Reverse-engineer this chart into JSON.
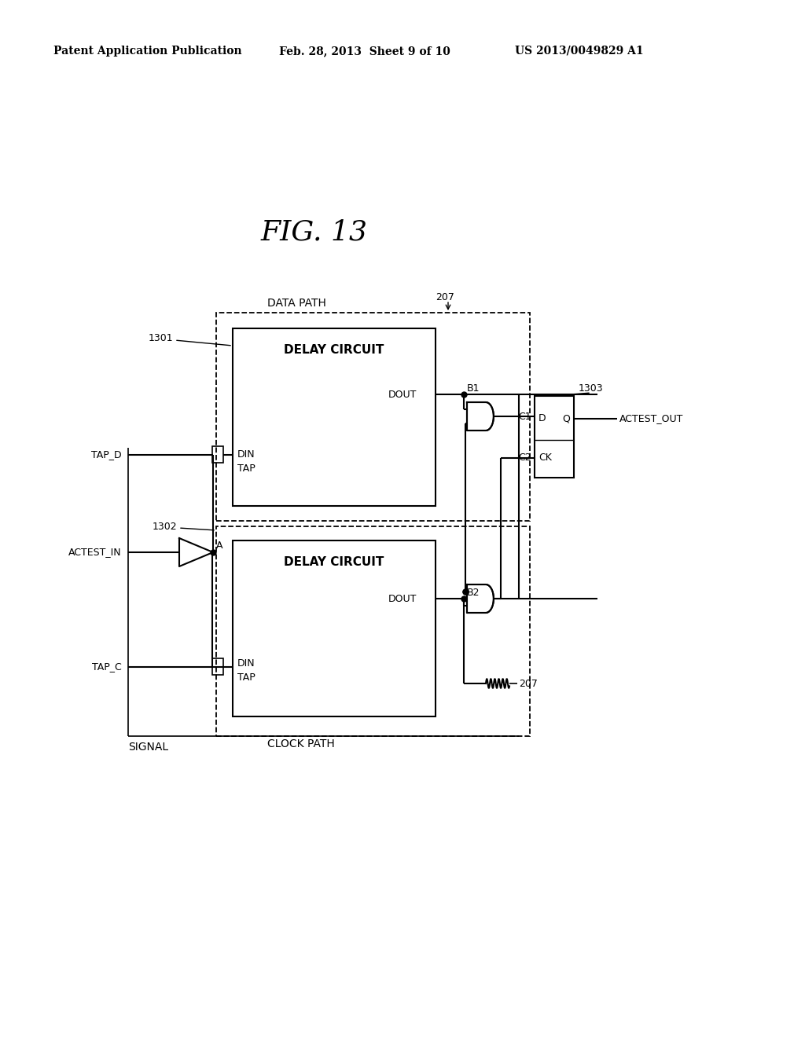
{
  "title": "FIG. 13",
  "header_left": "Patent Application Publication",
  "header_center": "Feb. 28, 2013  Sheet 9 of 10",
  "header_right": "US 2013/0049829 A1",
  "bg_color": "#ffffff"
}
